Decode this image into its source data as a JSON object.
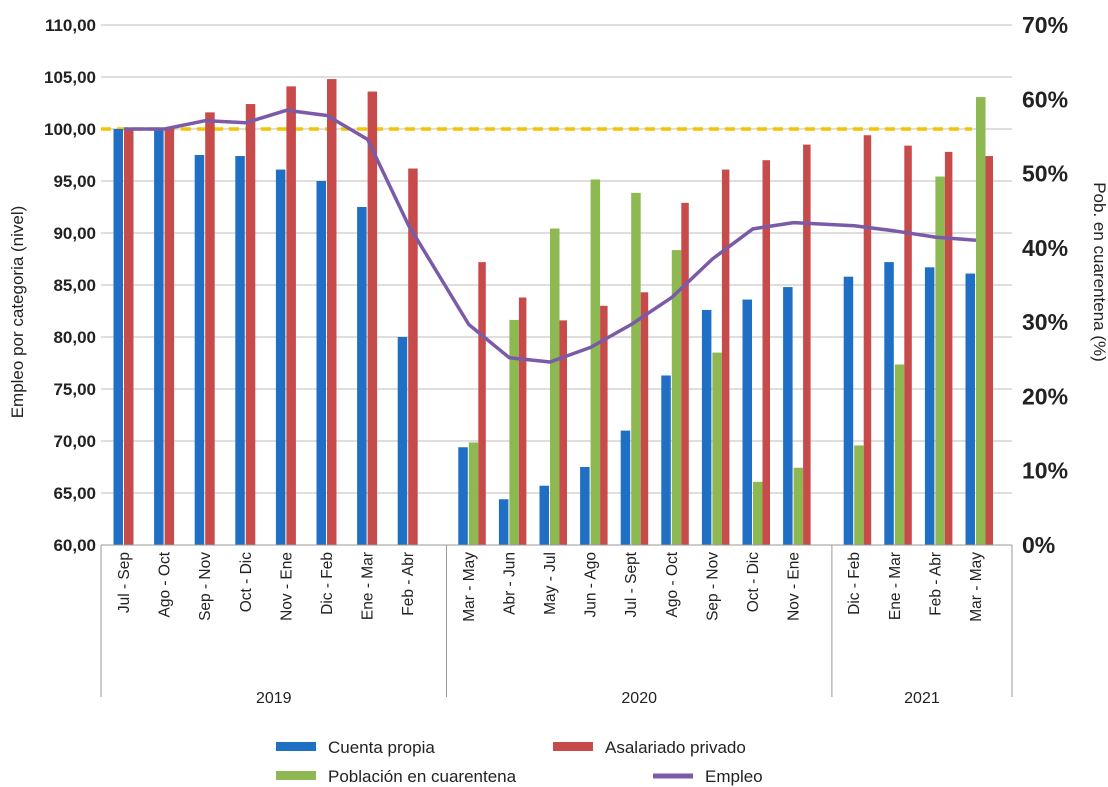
{
  "chart_data": {
    "type": "bar",
    "ylabel": "Empleo por categoria (nivel)",
    "y2label": "Pob. en cuarentena (%)",
    "ylim": [
      60,
      110
    ],
    "y2lim": [
      0,
      70
    ],
    "yticks": [
      "60,00",
      "65,00",
      "70,00",
      "75,00",
      "80,00",
      "85,00",
      "90,00",
      "95,00",
      "100,00",
      "105,00",
      "110,00"
    ],
    "y2ticks": [
      "0%",
      "10%",
      "20%",
      "30%",
      "40%",
      "50%",
      "60%",
      "70%"
    ],
    "reference_line": 100,
    "groups": [
      {
        "label": "2019",
        "categories": [
          "Jul - Sep",
          "Ago - Oct",
          "Sep - Nov",
          "Oct - Dic",
          "Nov - Ene",
          "Dic - Feb",
          "Ene - Mar",
          "Feb - Abr"
        ]
      },
      {
        "label": "2020",
        "categories": [
          "Mar - May",
          "Abr - Jun",
          "May - Jul",
          "Jun - Ago",
          "Jul - Sept",
          "Ago - Oct",
          "Sep - Nov",
          "Oct - Dic",
          "Nov - Ene"
        ]
      },
      {
        "label": "2021",
        "categories": [
          "Dic - Feb",
          "Ene - Mar",
          "Feb - Abr",
          "Mar - May"
        ]
      }
    ],
    "series": [
      {
        "name": "Cuenta propia",
        "axis": "left",
        "color": "#1f6fc5",
        "values": [
          100,
          100,
          97.5,
          97.4,
          96.1,
          95,
          92.5,
          80,
          69.4,
          64.4,
          65.7,
          67.5,
          71,
          76.3,
          82.6,
          83.6,
          84.8,
          85.8,
          87.2,
          86.7,
          86.1
        ]
      },
      {
        "name": "Asalariado privado",
        "axis": "left",
        "color": "#c84b4b",
        "values": [
          100,
          100,
          101.6,
          102.4,
          104.1,
          104.8,
          103.6,
          96.2,
          87.2,
          83.8,
          81.6,
          83,
          84.3,
          92.9,
          96.1,
          97,
          98.5,
          99.4,
          98.4,
          97.8,
          97.4
        ]
      },
      {
        "name": "Población en cuarentena",
        "axis": "right",
        "color": "#8db852",
        "values": [
          null,
          null,
          null,
          null,
          null,
          null,
          null,
          null,
          13.8,
          30.3,
          42.6,
          49.2,
          47.4,
          39.7,
          25.9,
          8.5,
          10.4,
          13.4,
          24.3,
          49.6,
          60.3
        ]
      },
      {
        "name": "Empleo",
        "axis": "left",
        "type": "line",
        "color": "#7b5ba8",
        "values": [
          100,
          100,
          100.8,
          100.6,
          101.8,
          101.3,
          99,
          90.8,
          81.2,
          78,
          77.6,
          79,
          81.2,
          83.8,
          87.5,
          90.4,
          91,
          90.7,
          90.2,
          89.6,
          89.3
        ]
      }
    ],
    "legend": "bottom"
  }
}
